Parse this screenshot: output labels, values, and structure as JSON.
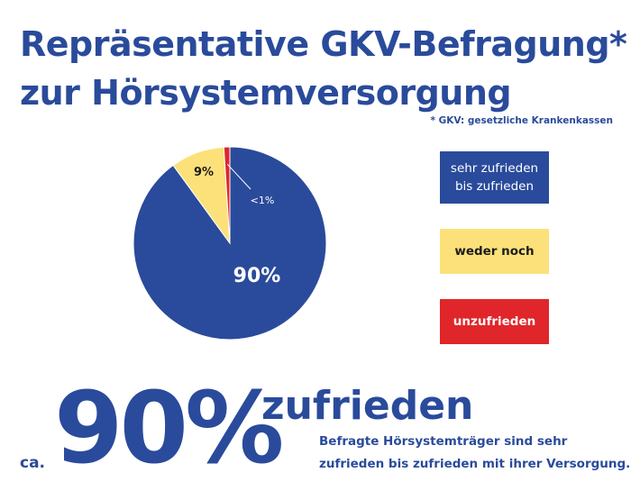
{
  "title": {
    "line1": "Repräsentative GKV-Befragung*",
    "line2": "zur Hörsystemversorgung"
  },
  "footnote": "* GKV: gesetzliche Krankenkassen",
  "colors": {
    "blue": "#2a4b9b",
    "yellow": "#fce17a",
    "red": "#e0262a"
  },
  "chart_data": {
    "type": "pie",
    "slices": [
      {
        "label": "90%",
        "value": 90,
        "legend": "sehr zufrieden bis zufrieden",
        "color": "#2a4b9b"
      },
      {
        "label": "9%",
        "value": 9,
        "legend": "weder noch",
        "color": "#fce17a"
      },
      {
        "label": "<1%",
        "value": 1,
        "legend": "unzufrieden",
        "color": "#e0262a"
      }
    ],
    "legend_placement": "right"
  },
  "legend": [
    {
      "line1": "sehr zufrieden",
      "line2": "bis zufrieden"
    },
    {
      "line1": "weder noch"
    },
    {
      "line1": "unzufrieden"
    }
  ],
  "summary": {
    "prefix": "ca.",
    "value": "90%",
    "word": "zufrieden",
    "desc_line1": "Befragte Hörsystemträger sind sehr",
    "desc_line2": "zufrieden bis zufrieden mit ihrer Versorgung."
  }
}
